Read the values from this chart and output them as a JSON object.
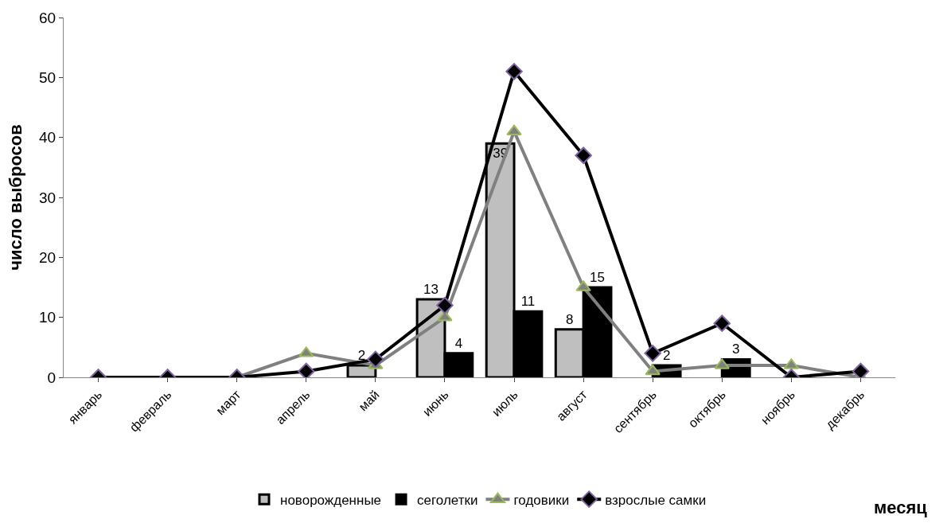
{
  "chart_data": {
    "type": "bar",
    "xlabel": "месяц",
    "ylabel": "число выбросов",
    "categories": [
      "январь",
      "февраль",
      "март",
      "апрель",
      "май",
      "июнь",
      "июль",
      "август",
      "сентябрь",
      "октябрь",
      "ноябрь",
      "декабрь"
    ],
    "series": [
      {
        "name": "новорожденные",
        "color": "#bfbfbf",
        "values": [
          null,
          null,
          null,
          null,
          2,
          13,
          39,
          8,
          null,
          null,
          null,
          null
        ],
        "value_labels": [
          null,
          null,
          null,
          null,
          "2",
          "13",
          "39",
          "8",
          null,
          null,
          null,
          null
        ]
      },
      {
        "name": "сеголетки",
        "color": "#000000",
        "values": [
          null,
          null,
          null,
          null,
          null,
          4,
          11,
          15,
          2,
          3,
          null,
          null
        ],
        "value_labels": [
          null,
          null,
          null,
          null,
          null,
          "4",
          "11",
          "15",
          "2",
          "3",
          null,
          null
        ]
      },
      {
        "name": "годовики",
        "type": "line",
        "color": "#808080",
        "marker": "triangle",
        "values": [
          0,
          0,
          0,
          4,
          2,
          10,
          41,
          15,
          1,
          2,
          2,
          0
        ]
      },
      {
        "name": "взрослые самки",
        "type": "line",
        "color": "#000000",
        "marker": "diamond",
        "values": [
          0,
          0,
          0,
          1,
          3,
          12,
          51,
          37,
          4,
          9,
          0,
          1
        ]
      }
    ],
    "ylim": [
      0,
      60
    ],
    "yticks": [
      0,
      10,
      20,
      30,
      40,
      50,
      60
    ],
    "legend": "bottom"
  }
}
